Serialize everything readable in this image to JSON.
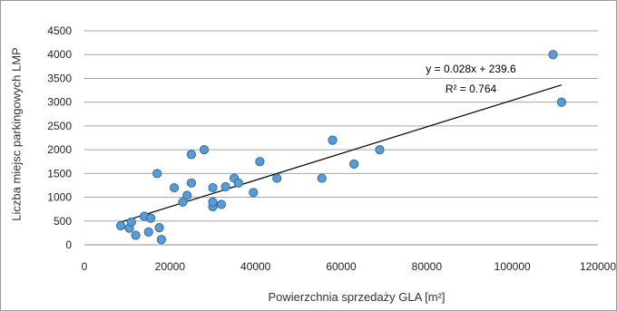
{
  "chart_data": {
    "type": "scatter",
    "xlabel": "Powierzchnia sprzedaży GLA [m²]",
    "ylabel": "Liczba miejsc parkingowych LMP",
    "xlim": [
      0,
      120000
    ],
    "ylim": [
      0,
      4500
    ],
    "x_ticks": [
      0,
      20000,
      40000,
      60000,
      80000,
      100000,
      120000
    ],
    "y_ticks": [
      0,
      500,
      1000,
      1500,
      2000,
      2500,
      3000,
      3500,
      4000,
      4500
    ],
    "grid": "horizontal",
    "legend": "none",
    "marker_color": "#5b9bd5",
    "marker_edge_color": "#2e6da4",
    "trendline": {
      "type": "linear",
      "slope": 0.028,
      "intercept": 239.6,
      "x_range": [
        8500,
        111500
      ],
      "equation_label": "y = 0.028x + 239.6",
      "r2_label": "R² = 0.764"
    },
    "points": [
      {
        "x": 8500,
        "y": 400
      },
      {
        "x": 10500,
        "y": 350
      },
      {
        "x": 11000,
        "y": 480
      },
      {
        "x": 12000,
        "y": 200
      },
      {
        "x": 14000,
        "y": 600
      },
      {
        "x": 15000,
        "y": 270
      },
      {
        "x": 15500,
        "y": 560
      },
      {
        "x": 17000,
        "y": 1500
      },
      {
        "x": 17500,
        "y": 360
      },
      {
        "x": 18000,
        "y": 110
      },
      {
        "x": 21000,
        "y": 1200
      },
      {
        "x": 23000,
        "y": 900
      },
      {
        "x": 24000,
        "y": 1040
      },
      {
        "x": 25000,
        "y": 1300
      },
      {
        "x": 25000,
        "y": 1900
      },
      {
        "x": 28000,
        "y": 2000
      },
      {
        "x": 30000,
        "y": 800
      },
      {
        "x": 30000,
        "y": 900
      },
      {
        "x": 30000,
        "y": 1200
      },
      {
        "x": 32000,
        "y": 850
      },
      {
        "x": 33000,
        "y": 1220
      },
      {
        "x": 35000,
        "y": 1400
      },
      {
        "x": 36000,
        "y": 1300
      },
      {
        "x": 39500,
        "y": 1100
      },
      {
        "x": 41000,
        "y": 1750
      },
      {
        "x": 45000,
        "y": 1400
      },
      {
        "x": 55500,
        "y": 1400
      },
      {
        "x": 58000,
        "y": 2200
      },
      {
        "x": 63000,
        "y": 1700
      },
      {
        "x": 69000,
        "y": 2000
      },
      {
        "x": 109500,
        "y": 4000
      },
      {
        "x": 111500,
        "y": 3000
      }
    ]
  }
}
